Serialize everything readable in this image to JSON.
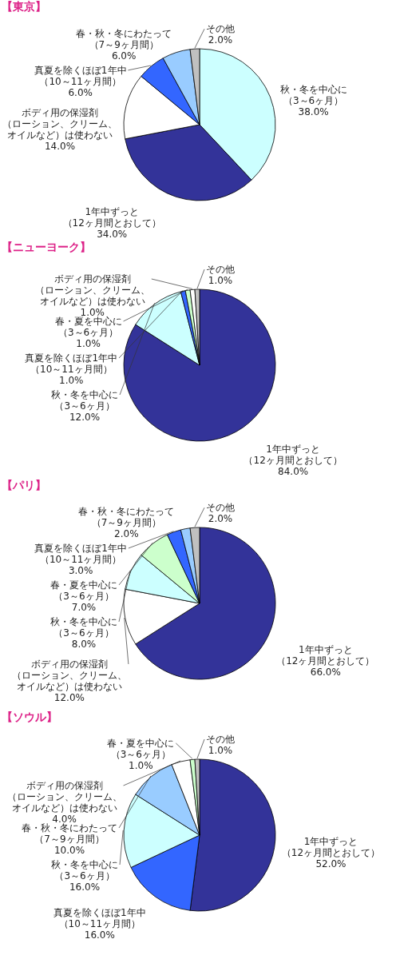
{
  "chart_data": [
    {
      "type": "pie",
      "title": "【東京】",
      "categories": [
        "秋・冬を中心に（3～6ヶ月）",
        "1年中ずっと（12ヶ月間とおして）",
        "ボディ用の保湿剤（ローション、クリーム、オイルなど）は使わない",
        "真夏を除くほぼ1年中（10～11ヶ月間）",
        "春・秋・冬にわたって（7～9ヶ月間）",
        "その他"
      ],
      "values": [
        38,
        34,
        14,
        6,
        6,
        2
      ],
      "colors": [
        "#ccffff",
        "#333399",
        "#ffffff",
        "#3366ff",
        "#99ccff",
        "#c0c0c0"
      ],
      "value_labels": [
        "38.0%",
        "34.0%",
        "14.0%",
        "6.0%",
        "6.0%",
        "2.0%"
      ]
    },
    {
      "type": "pie",
      "title": "【ニューヨーク】",
      "categories": [
        "1年中ずっと（12ヶ月間とおして）",
        "秋・冬を中心に（3～6ヶ月）",
        "真夏を除くほぼ1年中（10～11ヶ月間）",
        "春・夏を中心に（3～6ヶ月）",
        "ボディ用の保湿剤（ローション、クリーム、オイルなど）は使わない",
        "その他"
      ],
      "values": [
        84,
        12,
        1,
        1,
        1,
        1
      ],
      "colors": [
        "#333399",
        "#ccffff",
        "#3366ff",
        "#ccffcc",
        "#ffffff",
        "#c0c0c0"
      ],
      "value_labels": [
        "84.0%",
        "12.0%",
        "1.0%",
        "1.0%",
        "1.0%",
        "1.0%"
      ]
    },
    {
      "type": "pie",
      "title": "【パリ】",
      "categories": [
        "1年中ずっと（12ヶ月間とおして）",
        "ボディ用の保湿剤（ローション、クリーム、オイルなど）は使わない",
        "秋・冬を中心に（3～6ヶ月）",
        "春・夏を中心に（3～6ヶ月）",
        "真夏を除くほぼ1年中（10～11ヶ月間）",
        "春・秋・冬にわたって（7～9ヶ月間）",
        "その他"
      ],
      "values": [
        66,
        12,
        8,
        7,
        3,
        2,
        2
      ],
      "colors": [
        "#333399",
        "#ffffff",
        "#ccffff",
        "#ccffcc",
        "#3366ff",
        "#99ccff",
        "#c0c0c0"
      ],
      "value_labels": [
        "66.0%",
        "12.0%",
        "8.0%",
        "7.0%",
        "3.0%",
        "2.0%",
        "2.0%"
      ]
    },
    {
      "type": "pie",
      "title": "【ソウル】",
      "categories": [
        "1年中ずっと（12ヶ月間とおして）",
        "真夏を除くほぼ1年中（10～11ヶ月間）",
        "秋・冬を中心に（3～6ヶ月）",
        "春・秋・冬にわたって（7～9ヶ月間）",
        "ボディ用の保湿剤（ローション、クリーム、オイルなど）は使わない",
        "春・夏を中心に（3～6ヶ月）",
        "その他"
      ],
      "values": [
        52,
        16,
        16,
        10,
        4,
        1,
        1
      ],
      "colors": [
        "#333399",
        "#3366ff",
        "#ccffff",
        "#99ccff",
        "#ffffff",
        "#ccffcc",
        "#c0c0c0"
      ],
      "value_labels": [
        "52.0%",
        "16.0%",
        "16.0%",
        "10.0%",
        "4.0%",
        "1.0%",
        "1.0%"
      ]
    }
  ]
}
